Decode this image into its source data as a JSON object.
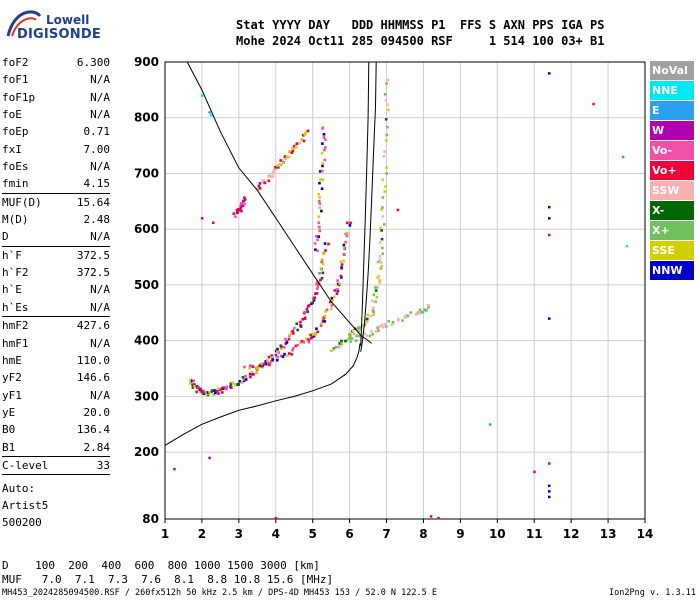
{
  "logo": {
    "line1": "Lowell",
    "line2": "DIGISONDE"
  },
  "header": {
    "line1": "Stat YYYY DAY   DDD HHMMSS P1  FFS S AXN PPS IGA PS",
    "line2": "Mohe 2024 Oct11 285 094500 RSF     1 514 100 03+ B1"
  },
  "params": [
    {
      "name": "foF2",
      "value": "6.300"
    },
    {
      "name": "foF1",
      "value": "N/A"
    },
    {
      "name": "foF1p",
      "value": "N/A"
    },
    {
      "name": "foE",
      "value": "N/A"
    },
    {
      "name": "foEp",
      "value": "0.71"
    },
    {
      "name": "fxI",
      "value": "7.00"
    },
    {
      "name": "foEs",
      "value": "N/A"
    },
    {
      "name": "fmin",
      "value": "4.15",
      "sep": true
    },
    {
      "name": "MUF(D)",
      "value": "15.64"
    },
    {
      "name": "M(D)",
      "value": "2.48"
    },
    {
      "name": "D",
      "value": "N/A",
      "sep": true
    },
    {
      "name": "h`F",
      "value": "372.5"
    },
    {
      "name": "h`F2",
      "value": "372.5"
    },
    {
      "name": "h`E",
      "value": "N/A"
    },
    {
      "name": "h`Es",
      "value": "N/A",
      "sep": true
    },
    {
      "name": "hmF2",
      "value": "427.6"
    },
    {
      "name": "hmF1",
      "value": "N/A"
    },
    {
      "name": "hmE",
      "value": "110.0"
    },
    {
      "name": "yF2",
      "value": "146.6"
    },
    {
      "name": "yF1",
      "value": "N/A"
    },
    {
      "name": "yE",
      "value": "20.0"
    },
    {
      "name": "B0",
      "value": "136.4"
    },
    {
      "name": "B1",
      "value": "2.84",
      "sep": true
    },
    {
      "name": "C-level",
      "value": "33",
      "sep": true
    }
  ],
  "auto": {
    "line1": "Auto:",
    "line2": "Artist5",
    "line3": "500200"
  },
  "legend": [
    {
      "label": "NoVal",
      "color": "#a0a0a0"
    },
    {
      "label": "NNE",
      "color": "#00e8f0"
    },
    {
      "label": "E",
      "color": "#2aa0f0"
    },
    {
      "label": "W",
      "color": "#b000b0"
    },
    {
      "label": "Vo-",
      "color": "#f050a8"
    },
    {
      "label": "Vo+",
      "color": "#f00038"
    },
    {
      "label": "SSW",
      "color": "#f8b0b0"
    },
    {
      "label": "X-",
      "color": "#006800"
    },
    {
      "label": "X+",
      "color": "#70c060"
    },
    {
      "label": "SSE",
      "color": "#d0d000"
    },
    {
      "label": "NNW",
      "color": "#0000c8"
    }
  ],
  "dmuf": {
    "d_line": "D    100  200  400  600  800 1000 1500 3000 [km]",
    "muf_line": "MUF   7.0  7.1  7.3  7.6  8.1  8.8 10.8 15.6 [MHz]"
  },
  "footer": {
    "left": "MH453_2024285094500.RSF / 260fx512h 50 kHz 2.5 km / DPS-4D MH453 153 / 52.0 N 122.5 E",
    "right": "Ion2Png v. 1.3.11"
  },
  "chart_data": {
    "type": "scatter",
    "xlim": [
      1,
      14
    ],
    "ylim": [
      80,
      900
    ],
    "x_ticks": [
      "1",
      "2",
      "3",
      "4",
      "5",
      "6",
      "7",
      "8",
      "9",
      "10",
      "11",
      "12",
      "13",
      "14"
    ],
    "y_ticks": [
      "80",
      "200",
      "300",
      "400",
      "500",
      "600",
      "700",
      "800",
      "900"
    ],
    "grid": true,
    "legend_position": "right",
    "profile_curve": [
      [
        1.0,
        212
      ],
      [
        1.5,
        232
      ],
      [
        2.0,
        250
      ],
      [
        2.5,
        263
      ],
      [
        3.0,
        275
      ],
      [
        3.5,
        283
      ],
      [
        4.0,
        292
      ],
      [
        4.5,
        300
      ],
      [
        5.0,
        310
      ],
      [
        5.5,
        322
      ],
      [
        5.9,
        340
      ],
      [
        6.1,
        355
      ],
      [
        6.2,
        370
      ],
      [
        6.25,
        380
      ],
      [
        6.28,
        395
      ]
    ],
    "trace_curves": [
      [
        [
          1.6,
          900
        ],
        [
          2.0,
          850
        ],
        [
          2.5,
          775
        ],
        [
          3.0,
          710
        ],
        [
          3.5,
          670
        ],
        [
          4.0,
          620
        ],
        [
          4.5,
          570
        ],
        [
          5.0,
          520
        ],
        [
          5.5,
          470
        ],
        [
          5.9,
          440
        ],
        [
          6.3,
          410
        ],
        [
          6.6,
          395
        ]
      ],
      [
        [
          6.3,
          380
        ],
        [
          6.35,
          400
        ],
        [
          6.4,
          430
        ],
        [
          6.45,
          470
        ],
        [
          6.5,
          520
        ],
        [
          6.55,
          580
        ],
        [
          6.6,
          660
        ],
        [
          6.65,
          740
        ],
        [
          6.7,
          820
        ],
        [
          6.72,
          900
        ]
      ],
      [
        [
          6.3,
          390
        ],
        [
          6.32,
          420
        ],
        [
          6.35,
          470
        ],
        [
          6.38,
          530
        ],
        [
          6.42,
          610
        ],
        [
          6.46,
          700
        ],
        [
          6.5,
          800
        ],
        [
          6.52,
          900
        ]
      ]
    ],
    "echo_groups": [
      {
        "kind": "F-o",
        "colors": [
          "#f00038",
          "#b000b0",
          "#f050a8",
          "#d0d000",
          "#0000c8",
          "#006800"
        ],
        "points": [
          [
            1.7,
            330
          ],
          [
            1.8,
            320
          ],
          [
            1.9,
            312
          ],
          [
            2.0,
            308
          ],
          [
            2.2,
            306
          ],
          [
            2.4,
            308
          ],
          [
            2.6,
            312
          ],
          [
            2.8,
            318
          ],
          [
            3.0,
            326
          ],
          [
            3.2,
            334
          ],
          [
            3.4,
            342
          ],
          [
            3.6,
            352
          ],
          [
            3.8,
            364
          ],
          [
            4.0,
            378
          ],
          [
            4.2,
            392
          ],
          [
            4.4,
            408
          ],
          [
            4.6,
            426
          ],
          [
            4.8,
            446
          ],
          [
            5.0,
            468
          ],
          [
            5.1,
            490
          ],
          [
            5.2,
            515
          ],
          [
            5.3,
            545
          ],
          [
            5.4,
            580
          ]
        ]
      },
      {
        "kind": "F-o2",
        "colors": [
          "#f00038",
          "#f050a8",
          "#d0d000",
          "#0000c8"
        ],
        "points": [
          [
            3.2,
            350
          ],
          [
            3.6,
            356
          ],
          [
            4.0,
            366
          ],
          [
            4.4,
            380
          ],
          [
            4.8,
            398
          ],
          [
            5.0,
            410
          ],
          [
            5.2,
            428
          ],
          [
            5.4,
            450
          ],
          [
            5.6,
            478
          ],
          [
            5.7,
            505
          ],
          [
            5.8,
            540
          ],
          [
            5.9,
            580
          ],
          [
            6.0,
            620
          ]
        ]
      },
      {
        "kind": "F-x",
        "colors": [
          "#70c060",
          "#006800",
          "#f8b0b0",
          "#d0d000"
        ],
        "points": [
          [
            5.5,
            380
          ],
          [
            5.8,
            395
          ],
          [
            6.0,
            410
          ],
          [
            6.2,
            420
          ],
          [
            6.4,
            430
          ],
          [
            6.6,
            450
          ],
          [
            6.7,
            480
          ],
          [
            6.8,
            520
          ],
          [
            6.85,
            560
          ],
          [
            6.9,
            620
          ],
          [
            6.95,
            700
          ],
          [
            7.0,
            800
          ],
          [
            7.0,
            880
          ]
        ]
      },
      {
        "kind": "F-x2",
        "colors": [
          "#70c060",
          "#f8b0b0"
        ],
        "points": [
          [
            6.0,
            400
          ],
          [
            6.4,
            410
          ],
          [
            6.8,
            420
          ],
          [
            7.0,
            430
          ],
          [
            7.4,
            440
          ],
          [
            7.8,
            450
          ],
          [
            8.0,
            455
          ],
          [
            8.2,
            460
          ]
        ]
      },
      {
        "kind": "F-multi",
        "colors": [
          "#f8b0b0",
          "#d0d000",
          "#b000b0",
          "#f00038"
        ],
        "points": [
          [
            3.5,
            670
          ],
          [
            3.7,
            685
          ],
          [
            3.9,
            700
          ],
          [
            4.1,
            715
          ],
          [
            4.3,
            730
          ],
          [
            4.5,
            745
          ],
          [
            4.7,
            760
          ],
          [
            4.9,
            780
          ]
        ]
      },
      {
        "kind": "F-multi2",
        "colors": [
          "#f00038",
          "#b000b0",
          "#f050a8"
        ],
        "points": [
          [
            2.9,
            625
          ],
          [
            3.0,
            635
          ],
          [
            3.1,
            645
          ],
          [
            3.2,
            655
          ]
        ]
      },
      {
        "kind": "F-multi3",
        "colors": [
          "#d0d000",
          "#f050a8",
          "#0000c8"
        ],
        "points": [
          [
            5.1,
            560
          ],
          [
            5.15,
            600
          ],
          [
            5.2,
            650
          ],
          [
            5.25,
            700
          ],
          [
            5.3,
            750
          ],
          [
            5.3,
            790
          ]
        ]
      },
      {
        "kind": "scatter",
        "colors": [
          "#0000c8"
        ],
        "points": [
          [
            11.4,
            880
          ],
          [
            11.4,
            640
          ],
          [
            11.4,
            620
          ],
          [
            11.4,
            440
          ],
          [
            11.4,
            120
          ],
          [
            11.4,
            130
          ],
          [
            11.4,
            140
          ]
        ]
      },
      {
        "kind": "scatter",
        "colors": [
          "#2aa0f0",
          "#00e8f0"
        ],
        "points": [
          [
            2.2,
            810
          ],
          [
            2.25,
            805
          ],
          [
            13.4,
            730
          ],
          [
            13.5,
            570
          ],
          [
            9.8,
            250
          ],
          [
            2.0,
            840
          ]
        ]
      },
      {
        "kind": "scatter",
        "colors": [
          "#b000b0",
          "#f00038"
        ],
        "points": [
          [
            11.4,
            590
          ],
          [
            12.6,
            825
          ],
          [
            2.2,
            190
          ],
          [
            8.2,
            85
          ],
          [
            8.4,
            82
          ],
          [
            4.0,
            82
          ],
          [
            11.4,
            180
          ],
          [
            11.0,
            165
          ],
          [
            1.25,
            170
          ],
          [
            7.3,
            635
          ],
          [
            2.0,
            620
          ],
          [
            2.3,
            612
          ]
        ]
      }
    ]
  }
}
